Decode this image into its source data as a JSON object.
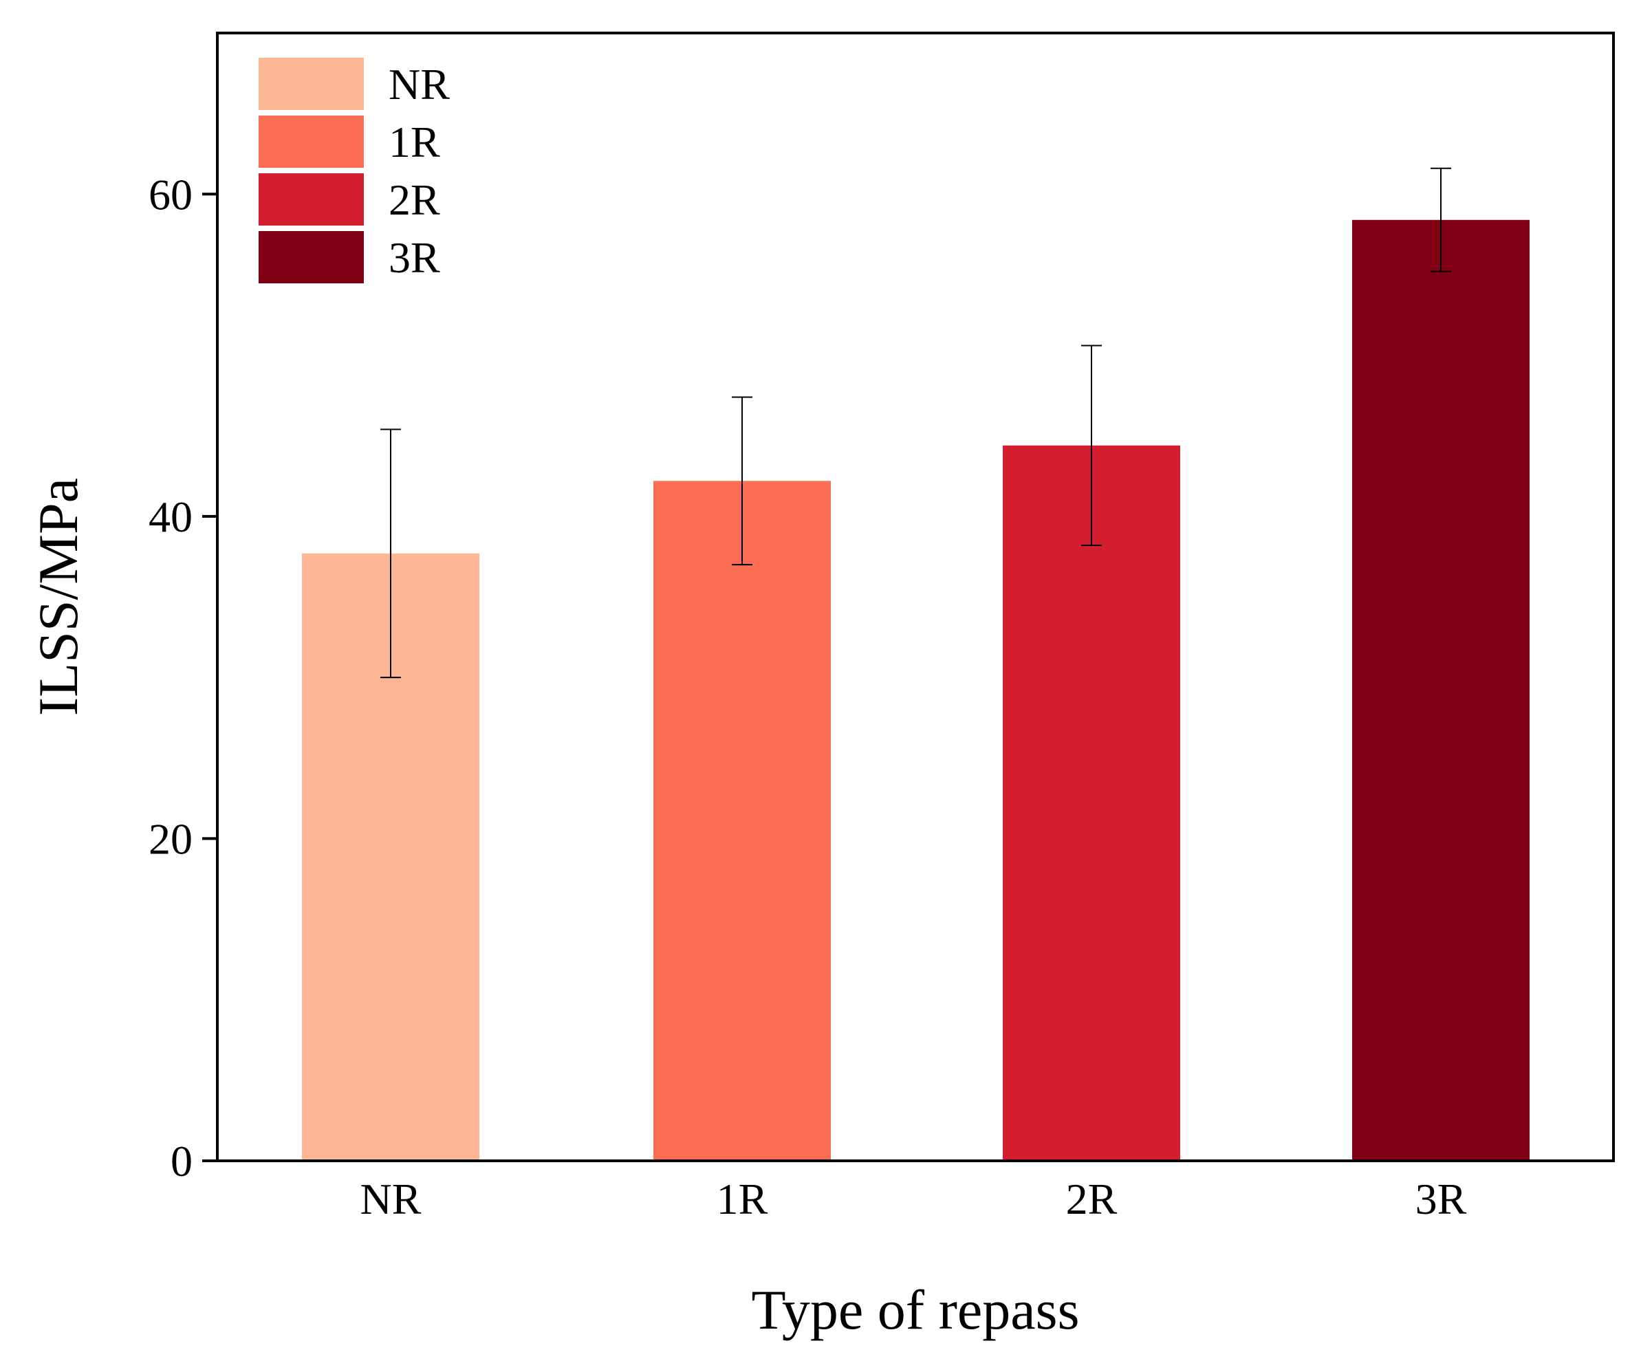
{
  "chart_data": {
    "type": "bar",
    "title": "",
    "xlabel": "Type of repass",
    "ylabel": "ILSS/MPa",
    "categories": [
      "NR",
      "1R",
      "2R",
      "3R"
    ],
    "values": [
      37.7,
      42.2,
      44.4,
      58.4
    ],
    "errors": [
      7.7,
      5.2,
      6.2,
      3.2
    ],
    "colors": [
      "#FDB795",
      "#FB6E53",
      "#D21E2F",
      "#800014"
    ],
    "ylim": [
      0,
      70
    ],
    "yticks": [
      0,
      20,
      40,
      60
    ],
    "grid": false,
    "legend": {
      "position": "top-left",
      "entries": [
        "NR",
        "1R",
        "2R",
        "3R"
      ]
    }
  }
}
